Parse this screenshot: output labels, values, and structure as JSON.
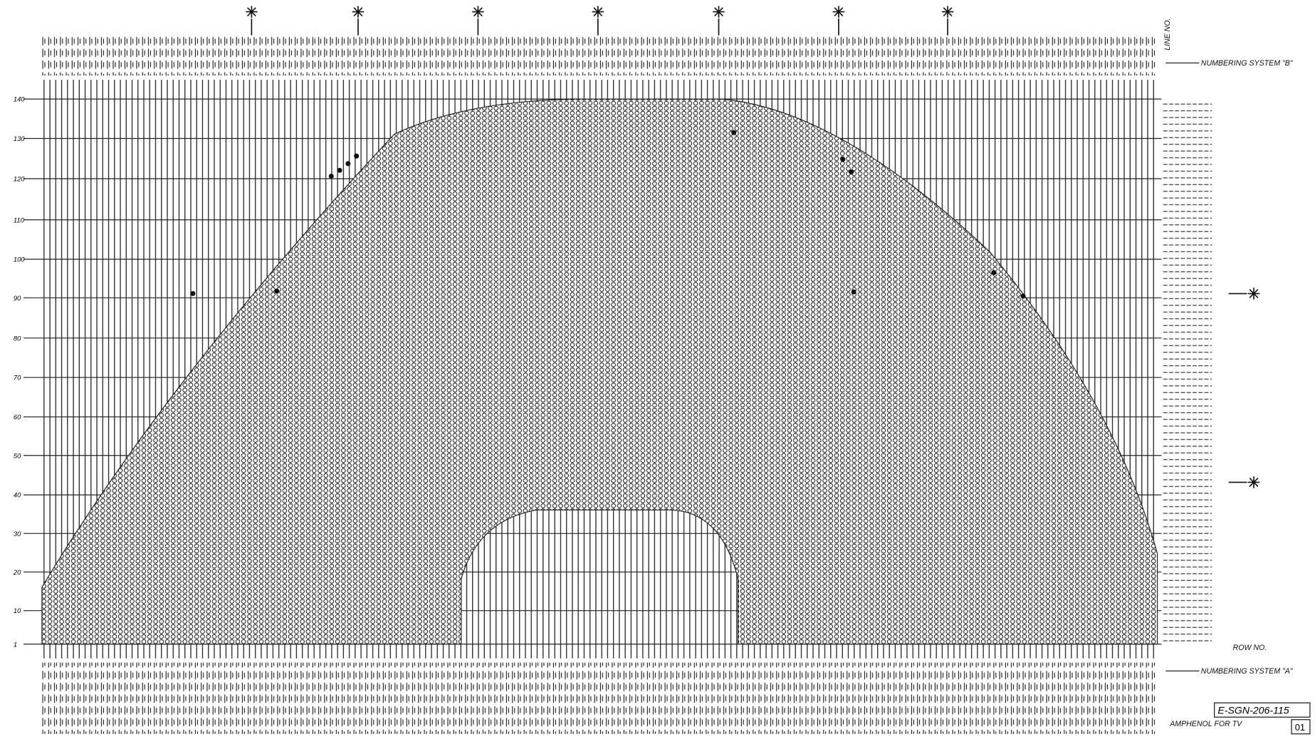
{
  "labels": {
    "numbering_system_b": "NUMBERING SYSTEM \"B\"",
    "numbering_system_a": "NUMBERING SYSTEM \"A\"",
    "line_no": "LINE NO.",
    "row_no": "ROW NO.",
    "drawing_number": "E-SGN-206-115",
    "sheet": "01",
    "note": "AMPHENOL FOR TV"
  },
  "row_labels": [
    "140",
    "130",
    "120",
    "110",
    "100",
    "90",
    "80",
    "70",
    "60",
    "50",
    "40",
    "30",
    "20",
    "10",
    "1"
  ]
}
